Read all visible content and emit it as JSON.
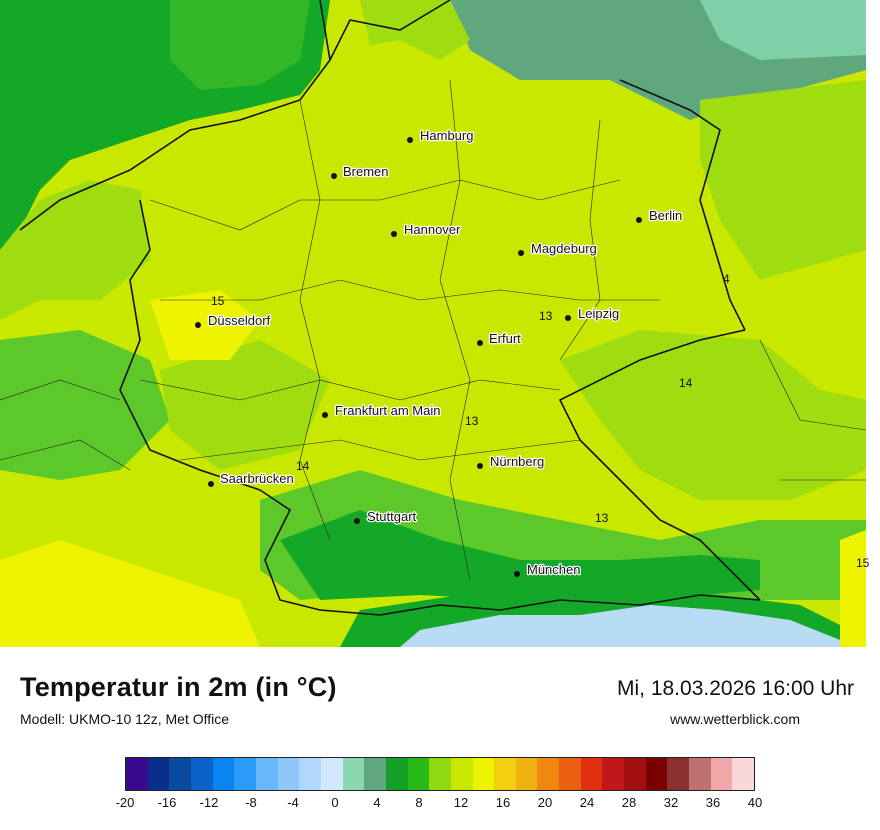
{
  "map": {
    "cities": [
      {
        "name": "Hamburg"
      },
      {
        "name": "Bremen"
      },
      {
        "name": "Berlin"
      },
      {
        "name": "Hannover"
      },
      {
        "name": "Magdeburg"
      },
      {
        "name": "Leipzig"
      },
      {
        "name": "Düsseldorf"
      },
      {
        "name": "Erfurt"
      },
      {
        "name": "Frankfurt am Main"
      },
      {
        "name": "Nürnberg"
      },
      {
        "name": "Saarbrücken"
      },
      {
        "name": "Stuttgart"
      },
      {
        "name": "München"
      }
    ],
    "isotherm_labels": [
      "15",
      "13",
      "4",
      "14",
      "13",
      "14",
      "13",
      "15"
    ],
    "colors": {
      "sea_dark": "#5fa87e",
      "sea_light": "#7fd0a8",
      "green_dark": "#14a828",
      "green_mid": "#5cc82a",
      "green_light": "#9fdc10",
      "yellow_green": "#c8e800",
      "yellow": "#eef400",
      "alps_blue": "#b8dcf4"
    }
  },
  "footer": {
    "title": "Temperatur in 2m (in °C)",
    "model": "Modell: UKMO-10 12z, Met Office",
    "date": "Mi, 18.03.2026 16:00 Uhr",
    "site": "www.wetterblick.com"
  },
  "legend": {
    "colors": [
      "#3a0a8c",
      "#0a2f8a",
      "#0a4aa0",
      "#0a62c8",
      "#0a84f0",
      "#2a9cf8",
      "#6ab8fa",
      "#8ec8fa",
      "#b0d8fc",
      "#d2e8fc",
      "#8ad8b0",
      "#5fa87e",
      "#14a028",
      "#28b818",
      "#90d810",
      "#c8e800",
      "#eef400",
      "#f0d010",
      "#f0b010",
      "#f08810",
      "#e86010",
      "#e03010",
      "#c01818",
      "#a01010",
      "#7a0000",
      "#8a3030",
      "#c07070",
      "#f0a8a8",
      "#f8d8d8"
    ],
    "ticks": [
      "-20",
      "-16",
      "-12",
      "-8",
      "-4",
      "0",
      "4",
      "8",
      "12",
      "16",
      "20",
      "24",
      "28",
      "32",
      "36",
      "40"
    ]
  }
}
